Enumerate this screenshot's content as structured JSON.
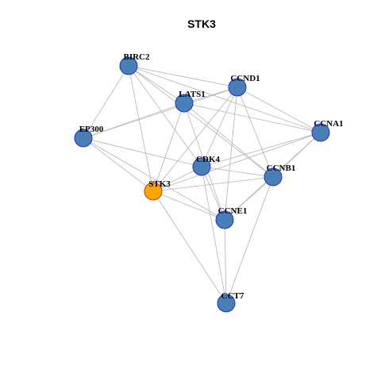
{
  "title": "STK3",
  "colors": {
    "node_fill": "#4a7fb5",
    "node_stroke": "#1f2fd0",
    "center_fill": "#ffa500",
    "center_stroke": "#a64b20",
    "edge": "#b3b3b3"
  },
  "nodes": [
    {
      "id": "BIRC2",
      "label": "BIRC2"
    },
    {
      "id": "CCND1",
      "label": "CCND1"
    },
    {
      "id": "LATS1",
      "label": "LATS1"
    },
    {
      "id": "EP300",
      "label": "EP300"
    },
    {
      "id": "CCNA1",
      "label": "CCNA1"
    },
    {
      "id": "CDK4",
      "label": "CDK4"
    },
    {
      "id": "CCNB1",
      "label": "CCNB1"
    },
    {
      "id": "STK3",
      "label": "STK3",
      "center": true
    },
    {
      "id": "CCNE1",
      "label": "CCNE1"
    },
    {
      "id": "CCT7",
      "label": "CCT7"
    }
  ],
  "edges": [
    [
      "BIRC2",
      "CCND1"
    ],
    [
      "BIRC2",
      "LATS1"
    ],
    [
      "BIRC2",
      "EP300"
    ],
    [
      "BIRC2",
      "STK3"
    ],
    [
      "BIRC2",
      "CDK4"
    ],
    [
      "BIRC2",
      "CCNA1"
    ],
    [
      "BIRC2",
      "CCNB1"
    ],
    [
      "CCND1",
      "LATS1"
    ],
    [
      "CCND1",
      "EP300"
    ],
    [
      "CCND1",
      "CDK4"
    ],
    [
      "CCND1",
      "STK3"
    ],
    [
      "CCND1",
      "CCNE1"
    ],
    [
      "CCND1",
      "CCNB1"
    ],
    [
      "CCND1",
      "CCNA1"
    ],
    [
      "LATS1",
      "EP300"
    ],
    [
      "LATS1",
      "STK3"
    ],
    [
      "LATS1",
      "CCNA1"
    ],
    [
      "LATS1",
      "CCNB1"
    ],
    [
      "LATS1",
      "CCNE1"
    ],
    [
      "EP300",
      "STK3"
    ],
    [
      "EP300",
      "CDK4"
    ],
    [
      "EP300",
      "CCNE1"
    ],
    [
      "CCNA1",
      "CDK4"
    ],
    [
      "CCNA1",
      "CCNB1"
    ],
    [
      "CCNA1",
      "STK3"
    ],
    [
      "CCNA1",
      "CCNE1"
    ],
    [
      "CDK4",
      "STK3"
    ],
    [
      "CDK4",
      "CCNB1"
    ],
    [
      "CDK4",
      "CCNE1"
    ],
    [
      "CDK4",
      "CCT7"
    ],
    [
      "CCNB1",
      "STK3"
    ],
    [
      "CCNB1",
      "CCNE1"
    ],
    [
      "CCNB1",
      "CCT7"
    ],
    [
      "STK3",
      "CCNE1"
    ],
    [
      "STK3",
      "CCT7"
    ],
    [
      "CCNE1",
      "CCT7"
    ]
  ]
}
